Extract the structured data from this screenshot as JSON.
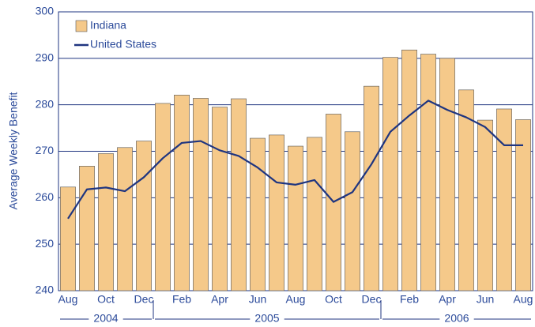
{
  "chart_data": {
    "type": "bar_line",
    "ylabel": "Average Weekly Benefit",
    "categories": [
      "Aug",
      null,
      "Oct",
      null,
      "Dec",
      null,
      "Feb",
      null,
      "Apr",
      null,
      "Jun",
      null,
      "Aug",
      null,
      "Oct",
      null,
      "Dec",
      null,
      "Feb",
      null,
      "Apr",
      null,
      "Jun",
      null,
      "Aug"
    ],
    "x_groups": [
      {
        "label": "2004",
        "start": 0,
        "end": 4
      },
      {
        "label": "2005",
        "start": 5,
        "end": 16
      },
      {
        "label": "2006",
        "start": 17,
        "end": 24
      }
    ],
    "series": [
      {
        "name": "Indiana",
        "kind": "bar",
        "color": "#f5c98a",
        "values": [
          262.3,
          266.8,
          269.5,
          270.8,
          272.2,
          280.3,
          282.1,
          281.4,
          279.5,
          281.3,
          272.8,
          273.5,
          271.1,
          273.0,
          278.0,
          274.2,
          284.0,
          290.2,
          291.8,
          290.9,
          290.0,
          283.2,
          276.7,
          279.1,
          276.8
        ]
      },
      {
        "name": "United States",
        "kind": "line",
        "color": "#1f3580",
        "values": [
          255.5,
          261.8,
          262.2,
          261.4,
          264.4,
          268.5,
          271.8,
          272.2,
          270.2,
          269.0,
          266.5,
          263.3,
          262.8,
          263.8,
          259.1,
          261.2,
          267.2,
          274.2,
          277.7,
          280.9,
          278.9,
          277.3,
          275.2,
          271.3,
          271.3
        ]
      }
    ],
    "ylim": [
      240,
      300
    ],
    "yticks": [
      240,
      250,
      260,
      270,
      280,
      290,
      300
    ],
    "grid": true,
    "legend": "upper left"
  }
}
